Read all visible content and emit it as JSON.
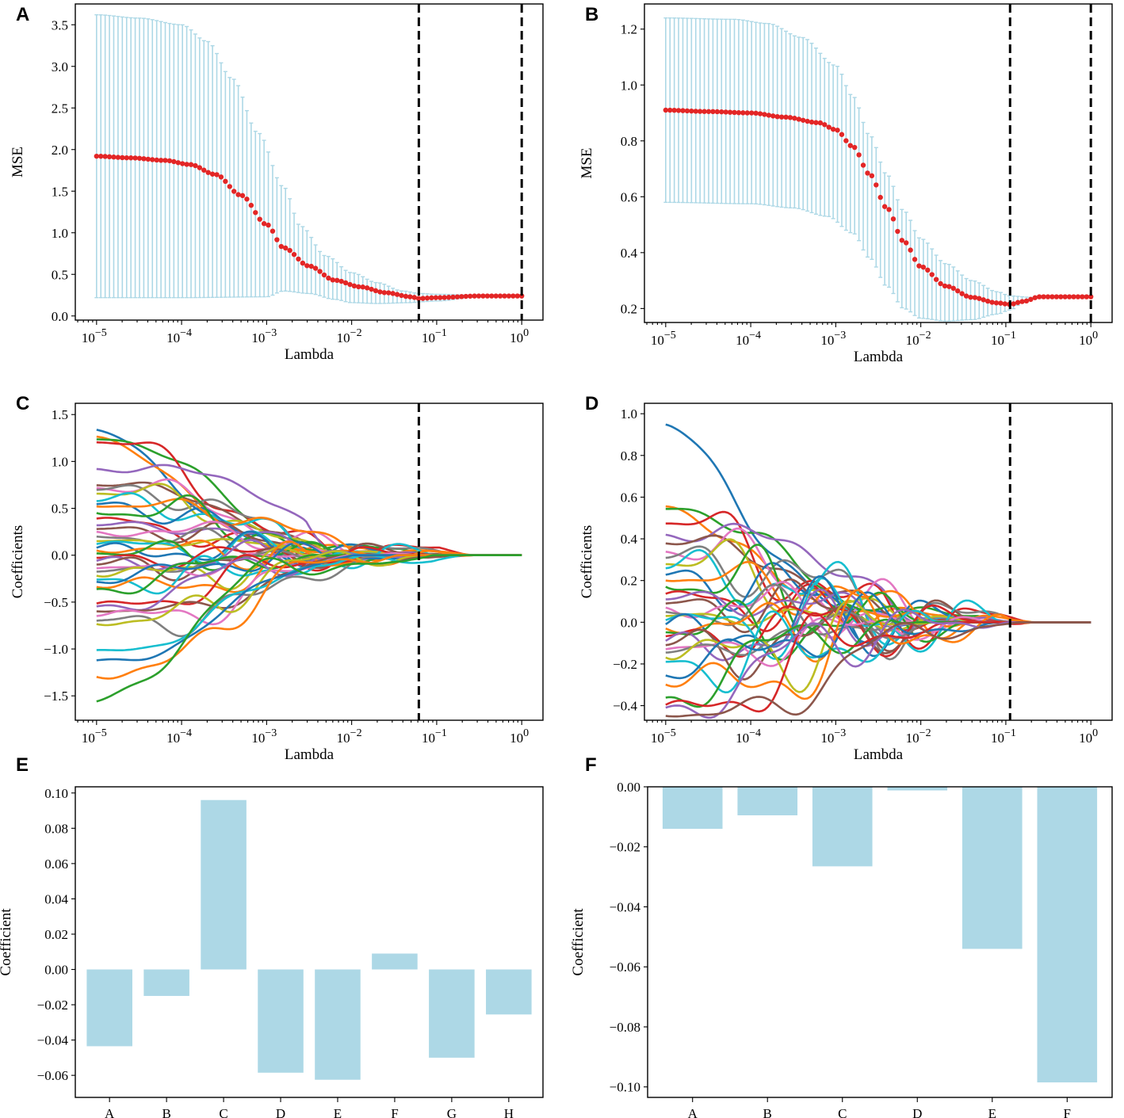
{
  "colors": {
    "errorbar": "#add8e6",
    "mean": "#e32626",
    "bar": "#add8e6",
    "vline": "#000000",
    "cycle": [
      "#1f77b4",
      "#ff7f0e",
      "#2ca02c",
      "#d62728",
      "#9467bd",
      "#8c564b",
      "#e377c2",
      "#7f7f7f",
      "#bcbd22",
      "#17becf"
    ]
  },
  "chart_data": [
    {
      "id": "A",
      "panel_label": "A",
      "type": "errorbar",
      "xlabel": "Lambda",
      "ylabel": "MSE",
      "xscale": "log",
      "xlim_log10": [
        -5.25,
        0.25
      ],
      "ylim": [
        -0.05,
        3.75
      ],
      "yticks": [
        0.0,
        0.5,
        1.0,
        1.5,
        2.0,
        2.5,
        3.0,
        3.5
      ],
      "ytick_labels": [
        "0.0",
        "0.5",
        "1.0",
        "1.5",
        "2.0",
        "2.5",
        "3.0",
        "3.5"
      ],
      "xtick_exponents": [
        "−5",
        "−4",
        "−3",
        "−2",
        "−1",
        "0"
      ],
      "lambda_log10_range": [
        -5,
        0
      ],
      "n_points": 100,
      "mean_knots": [
        [
          -5,
          1.92
        ],
        [
          -4.6,
          1.9
        ],
        [
          -4.2,
          1.87
        ],
        [
          -3.9,
          1.82
        ],
        [
          -3.6,
          1.7
        ],
        [
          -3.3,
          1.45
        ],
        [
          -3.0,
          1.1
        ],
        [
          -2.8,
          0.82
        ],
        [
          -2.5,
          0.6
        ],
        [
          -2.2,
          0.43
        ],
        [
          -1.9,
          0.35
        ],
        [
          -1.6,
          0.28
        ],
        [
          -1.3,
          0.23
        ],
        [
          -1.21,
          0.21
        ],
        [
          -1.0,
          0.22
        ],
        [
          -0.5,
          0.24
        ],
        [
          0,
          0.24
        ]
      ],
      "upper_knots": [
        [
          -5,
          3.62
        ],
        [
          -4.5,
          3.58
        ],
        [
          -4.0,
          3.5
        ],
        [
          -3.7,
          3.3
        ],
        [
          -3.4,
          2.85
        ],
        [
          -3.1,
          2.2
        ],
        [
          -2.8,
          1.55
        ],
        [
          -2.6,
          1.08
        ],
        [
          -2.3,
          0.72
        ],
        [
          -2.0,
          0.52
        ],
        [
          -1.7,
          0.4
        ],
        [
          -1.4,
          0.3
        ],
        [
          -1.2,
          0.27
        ],
        [
          -1.0,
          0.26
        ],
        [
          -0.5,
          0.25
        ],
        [
          0,
          0.24
        ]
      ],
      "lower_knots": [
        [
          -5,
          0.22
        ],
        [
          -4.0,
          0.22
        ],
        [
          -3.0,
          0.23
        ],
        [
          -2.8,
          0.3
        ],
        [
          -2.5,
          0.27
        ],
        [
          -2.2,
          0.2
        ],
        [
          -2.0,
          0.16
        ],
        [
          -1.7,
          0.15
        ],
        [
          -1.3,
          0.16
        ],
        [
          -1.2,
          0.17
        ],
        [
          -1.0,
          0.18
        ],
        [
          -0.5,
          0.23
        ],
        [
          0,
          0.24
        ]
      ],
      "vlines_lambda_log10": [
        -1.21,
        0
      ]
    },
    {
      "id": "B",
      "panel_label": "B",
      "type": "errorbar",
      "xlabel": "Lambda",
      "ylabel": "MSE",
      "xscale": "log",
      "xlim_log10": [
        -5.25,
        0.25
      ],
      "ylim": [
        0.15,
        1.29
      ],
      "yticks": [
        0.2,
        0.4,
        0.6,
        0.8,
        1.0,
        1.2
      ],
      "ytick_labels": [
        "0.2",
        "0.4",
        "0.6",
        "0.8",
        "1.0",
        "1.2"
      ],
      "xtick_exponents": [
        "−5",
        "−4",
        "−3",
        "−2",
        "−1",
        "0"
      ],
      "lambda_log10_range": [
        -5,
        0
      ],
      "n_points": 100,
      "mean_knots": [
        [
          -5,
          0.91
        ],
        [
          -4.5,
          0.905
        ],
        [
          -4.0,
          0.9
        ],
        [
          -3.6,
          0.885
        ],
        [
          -3.2,
          0.865
        ],
        [
          -3.0,
          0.84
        ],
        [
          -2.8,
          0.78
        ],
        [
          -2.6,
          0.68
        ],
        [
          -2.4,
          0.56
        ],
        [
          -2.2,
          0.44
        ],
        [
          -2.0,
          0.35
        ],
        [
          -1.7,
          0.28
        ],
        [
          -1.4,
          0.24
        ],
        [
          -1.1,
          0.22
        ],
        [
          -0.95,
          0.215
        ],
        [
          -0.8,
          0.225
        ],
        [
          -0.6,
          0.242
        ],
        [
          0,
          0.242
        ]
      ],
      "upper_knots": [
        [
          -5,
          1.24
        ],
        [
          -4.2,
          1.235
        ],
        [
          -3.8,
          1.22
        ],
        [
          -3.4,
          1.17
        ],
        [
          -3.0,
          1.07
        ],
        [
          -2.8,
          0.96
        ],
        [
          -2.6,
          0.82
        ],
        [
          -2.4,
          0.68
        ],
        [
          -2.2,
          0.55
        ],
        [
          -2.0,
          0.45
        ],
        [
          -1.7,
          0.36
        ],
        [
          -1.4,
          0.3
        ],
        [
          -1.1,
          0.26
        ],
        [
          -0.95,
          0.245
        ],
        [
          -0.7,
          0.24
        ],
        [
          -0.5,
          0.242
        ],
        [
          0,
          0.242
        ]
      ],
      "lower_knots": [
        [
          -5,
          0.58
        ],
        [
          -4.0,
          0.575
        ],
        [
          -3.5,
          0.56
        ],
        [
          -3.1,
          0.53
        ],
        [
          -2.8,
          0.47
        ],
        [
          -2.6,
          0.38
        ],
        [
          -2.4,
          0.28
        ],
        [
          -2.2,
          0.2
        ],
        [
          -2.0,
          0.165
        ],
        [
          -1.7,
          0.155
        ],
        [
          -1.4,
          0.16
        ],
        [
          -1.1,
          0.18
        ],
        [
          -0.95,
          0.195
        ],
        [
          -0.8,
          0.22
        ],
        [
          -0.6,
          0.242
        ],
        [
          0,
          0.242
        ]
      ],
      "vlines_lambda_log10": [
        -0.95,
        0
      ]
    },
    {
      "id": "C",
      "panel_label": "C",
      "type": "line",
      "xlabel": "Lambda",
      "ylabel": "Coefficients",
      "xscale": "log",
      "xlim_log10": [
        -5.25,
        0.25
      ],
      "ylim": [
        -1.76,
        1.62
      ],
      "yticks": [
        -1.5,
        -1.0,
        -0.5,
        0.0,
        0.5,
        1.0,
        1.5
      ],
      "ytick_labels": [
        "−1.5",
        "−1.0",
        "−0.5",
        "0.0",
        "0.5",
        "1.0",
        "1.5"
      ],
      "xtick_exponents": [
        "−5",
        "−4",
        "−3",
        "−2",
        "−1",
        "0"
      ],
      "start_values": [
        1.41,
        1.32,
        1.25,
        1.22,
        0.92,
        0.75,
        0.72,
        0.7,
        0.66,
        0.58,
        0.55,
        0.52,
        0.45,
        0.4,
        0.32,
        0.28,
        0.25,
        0.2,
        0.15,
        0.12,
        0.08,
        0.05,
        0.02,
        -0.03,
        -0.06,
        -0.1,
        -0.14,
        -0.18,
        -0.22,
        -0.26,
        -0.3,
        -0.34,
        -0.38,
        -0.52,
        -0.56,
        -0.6,
        -0.65,
        -0.7,
        -0.74,
        -1.02,
        -1.13,
        -1.31,
        -1.62
      ],
      "zero_lambda_log10": [
        -2.1,
        -1.6,
        -1.1,
        -0.6
      ],
      "vlines_lambda_log10": [
        -1.21
      ]
    },
    {
      "id": "D",
      "panel_label": "D",
      "type": "line",
      "xlabel": "Lambda",
      "ylabel": "Coefficients",
      "xscale": "log",
      "xlim_log10": [
        -5.25,
        0.25
      ],
      "ylim": [
        -0.47,
        1.05
      ],
      "yticks": [
        -0.4,
        -0.2,
        0.0,
        0.2,
        0.4,
        0.6,
        0.8,
        1.0
      ],
      "ytick_labels": [
        "−0.4",
        "−0.2",
        "0.0",
        "0.2",
        "0.4",
        "0.6",
        "0.8",
        "1.0"
      ],
      "xtick_exponents": [
        "−5",
        "−4",
        "−3",
        "−2",
        "−1",
        "0"
      ],
      "start_values": [
        1.0,
        0.58,
        0.55,
        0.48,
        0.42,
        0.38,
        0.34,
        0.31,
        0.28,
        0.26,
        0.23,
        0.2,
        0.17,
        0.14,
        0.11,
        0.09,
        0.07,
        0.05,
        0.03,
        0.01,
        -0.01,
        -0.03,
        -0.05,
        -0.07,
        -0.09,
        -0.11,
        -0.13,
        -0.15,
        -0.17,
        -0.19,
        -0.27,
        -0.3,
        -0.38,
        -0.4,
        -0.42,
        -0.45
      ],
      "zero_lambda_log10": [
        -2.0,
        -1.5,
        -1.0,
        -0.7
      ],
      "vlines_lambda_log10": [
        -0.95
      ]
    },
    {
      "id": "E",
      "panel_label": "E",
      "type": "bar",
      "xlabel": "",
      "ylabel": "Coefficient",
      "ylim": [
        -0.0725,
        0.1035
      ],
      "yticks": [
        -0.06,
        -0.04,
        -0.02,
        0.0,
        0.02,
        0.04,
        0.06,
        0.08,
        0.1
      ],
      "ytick_labels": [
        "−0.06",
        "−0.04",
        "−0.02",
        "0.00",
        "0.02",
        "0.04",
        "0.06",
        "0.08",
        "0.10"
      ],
      "categories": [
        "A",
        "B",
        "C",
        "D",
        "E",
        "F",
        "G",
        "H"
      ],
      "values": [
        -0.0435,
        -0.015,
        0.096,
        -0.0585,
        -0.0625,
        0.009,
        -0.05,
        -0.0255
      ]
    },
    {
      "id": "F",
      "panel_label": "F",
      "type": "bar",
      "xlabel": "",
      "ylabel": "Coefficient",
      "ylim": [
        -0.1035,
        0.0
      ],
      "yticks": [
        -0.1,
        -0.08,
        -0.06,
        -0.04,
        -0.02,
        0.0
      ],
      "ytick_labels": [
        "−0.10",
        "−0.08",
        "−0.06",
        "−0.04",
        "−0.02",
        "0.00"
      ],
      "categories": [
        "A",
        "B",
        "C",
        "D",
        "E",
        "F"
      ],
      "values": [
        -0.014,
        -0.0095,
        -0.0265,
        -0.0012,
        -0.054,
        -0.0985
      ]
    }
  ]
}
